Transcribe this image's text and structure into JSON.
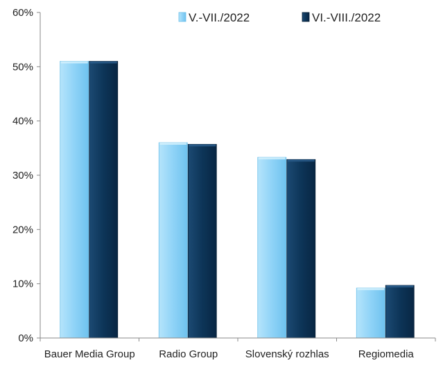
{
  "chart_data": {
    "type": "bar",
    "title": "",
    "xlabel": "",
    "ylabel": "",
    "categories": [
      "Bauer Media Group",
      "Radio Group",
      "Slovenský rozhlas",
      "Regiomedia"
    ],
    "series": [
      {
        "name": "V.-VII./2022",
        "values": [
          51,
          36,
          33.3,
          9.2
        ],
        "color": "#8fd3f7"
      },
      {
        "name": "VI.-VIII./2022",
        "values": [
          51,
          35.7,
          32.9,
          9.7
        ],
        "color": "#0d3558"
      }
    ],
    "ylim": [
      0,
      60
    ],
    "yticks": [
      0,
      10,
      20,
      30,
      40,
      50,
      60
    ],
    "ytick_labels": [
      "0%",
      "10%",
      "20%",
      "30%",
      "40%",
      "50%",
      "60%"
    ],
    "grid": false,
    "legend_position": "top-right"
  }
}
